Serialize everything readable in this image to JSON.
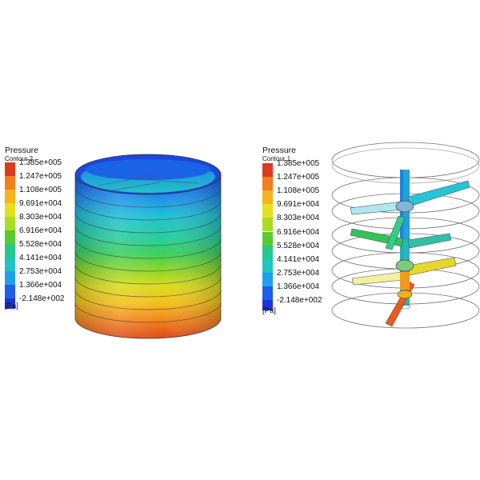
{
  "legend_colors": [
    "#d93d1b",
    "#f47d1f",
    "#f4b51c",
    "#e5df1e",
    "#a9dc22",
    "#57cc2d",
    "#25c98a",
    "#20c4c5",
    "#1e9ff0",
    "#1c5fe8",
    "#1d35d8"
  ],
  "left": {
    "title": "Pressure",
    "subtitle": "Contour 2",
    "unit": "[Pa]",
    "labels": [
      "1.385e+005",
      "1.247e+005",
      "1.108e+005",
      "9.691e+004",
      "8.303e+004",
      "6.916e+004",
      "5.528e+004",
      "4.141e+004",
      "2.753e+004",
      "1.366e+004",
      "-2.148e+002"
    ]
  },
  "right": {
    "title": "Pressure",
    "subtitle": "Contour 1",
    "unit": "[Pa]",
    "labels": [
      "1.385e+005",
      "1.247e+005",
      "1.108e+005",
      "9.691e+004",
      "8.303e+004",
      "6.916e+004",
      "5.528e+004",
      "4.141e+004",
      "2.753e+004",
      "1.366e+004",
      "-2.148e+002"
    ]
  }
}
